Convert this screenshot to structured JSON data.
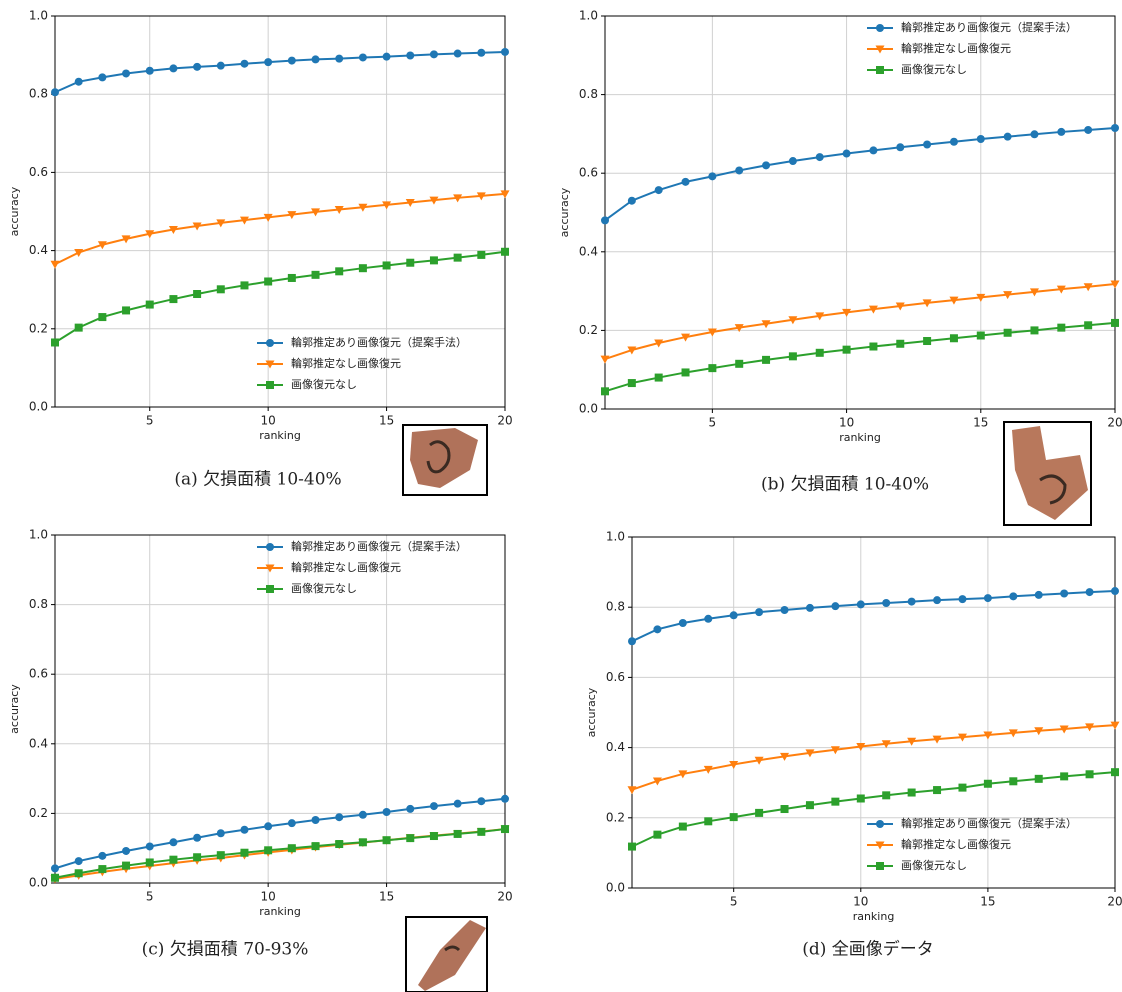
{
  "chart_data": [
    {
      "type": "line",
      "caption": "(a) 欠損面積 10-40%",
      "xlabel": "ranking",
      "ylabel": "accuracy",
      "x": [
        1,
        2,
        3,
        4,
        5,
        6,
        7,
        8,
        9,
        10,
        11,
        12,
        13,
        14,
        15,
        16,
        17,
        18,
        19,
        20
      ],
      "xlim": [
        1,
        20
      ],
      "xticks": [
        5,
        10,
        15,
        20
      ],
      "ylim": [
        0,
        1
      ],
      "yticks": [
        {
          "value": 0,
          "label": "0.0"
        },
        0.2,
        0.4,
        0.6,
        0.8,
        {
          "value": 1,
          "label": "1.0"
        }
      ],
      "grid": true,
      "legend": "lower right",
      "series": [
        {
          "name": "輪郭推定あり画像復元（提案手法）",
          "color": "#1f77b4",
          "marker": "circle",
          "values": [
            0.805,
            0.832,
            0.843,
            0.853,
            0.86,
            0.866,
            0.87,
            0.873,
            0.878,
            0.882,
            0.886,
            0.889,
            0.891,
            0.894,
            0.896,
            0.899,
            0.902,
            0.904,
            0.906,
            0.908
          ]
        },
        {
          "name": "輪郭推定なし画像復元",
          "color": "#ff7f0e",
          "marker": "triangle-down",
          "values": [
            0.365,
            0.395,
            0.415,
            0.43,
            0.443,
            0.454,
            0.463,
            0.471,
            0.478,
            0.485,
            0.492,
            0.499,
            0.505,
            0.511,
            0.517,
            0.523,
            0.529,
            0.535,
            0.54,
            0.545
          ]
        },
        {
          "name": "画像復元なし",
          "color": "#2ca02c",
          "marker": "square",
          "values": [
            0.165,
            0.203,
            0.23,
            0.247,
            0.262,
            0.276,
            0.289,
            0.301,
            0.311,
            0.321,
            0.33,
            0.338,
            0.347,
            0.355,
            0.362,
            0.369,
            0.375,
            0.382,
            0.389,
            0.397
          ]
        }
      ]
    },
    {
      "type": "line",
      "caption": "(b) 欠損面積 10-40%",
      "xlabel": "ranking",
      "ylabel": "accuracy",
      "x": [
        1,
        2,
        3,
        4,
        5,
        6,
        7,
        8,
        9,
        10,
        11,
        12,
        13,
        14,
        15,
        16,
        17,
        18,
        19,
        20
      ],
      "xlim": [
        1,
        20
      ],
      "xticks": [
        5,
        10,
        15,
        20
      ],
      "ylim": [
        0,
        1
      ],
      "yticks": [
        {
          "value": 0,
          "label": "0.0"
        },
        0.2,
        0.4,
        0.6,
        0.8,
        {
          "value": 1,
          "label": "1.0"
        }
      ],
      "grid": true,
      "legend": "upper right",
      "series": [
        {
          "name": "輪郭推定あり画像復元（提案手法）",
          "color": "#1f77b4",
          "marker": "circle",
          "values": [
            0.48,
            0.53,
            0.557,
            0.578,
            0.592,
            0.607,
            0.62,
            0.631,
            0.641,
            0.65,
            0.658,
            0.666,
            0.673,
            0.68,
            0.687,
            0.693,
            0.699,
            0.705,
            0.71,
            0.715
          ]
        },
        {
          "name": "輪郭推定なし画像復元",
          "color": "#ff7f0e",
          "marker": "triangle-down",
          "values": [
            0.127,
            0.15,
            0.168,
            0.183,
            0.196,
            0.207,
            0.217,
            0.227,
            0.237,
            0.246,
            0.254,
            0.262,
            0.27,
            0.277,
            0.284,
            0.291,
            0.298,
            0.305,
            0.311,
            0.318
          ]
        },
        {
          "name": "画像復元なし",
          "color": "#2ca02c",
          "marker": "square",
          "values": [
            0.045,
            0.066,
            0.08,
            0.093,
            0.104,
            0.115,
            0.125,
            0.134,
            0.143,
            0.151,
            0.159,
            0.166,
            0.173,
            0.18,
            0.187,
            0.194,
            0.2,
            0.207,
            0.213,
            0.219
          ]
        }
      ]
    },
    {
      "type": "line",
      "caption": "(c) 欠損面積 70-93%",
      "xlabel": "ranking",
      "ylabel": "accuracy",
      "x": [
        1,
        2,
        3,
        4,
        5,
        6,
        7,
        8,
        9,
        10,
        11,
        12,
        13,
        14,
        15,
        16,
        17,
        18,
        19,
        20
      ],
      "xlim": [
        1,
        20
      ],
      "xticks": [
        5,
        10,
        15,
        20
      ],
      "ylim": [
        0,
        1
      ],
      "yticks": [
        {
          "value": 0,
          "label": "0.0"
        },
        0.2,
        0.4,
        0.6,
        0.8,
        {
          "value": 1,
          "label": "1.0"
        }
      ],
      "grid": true,
      "legend": "upper right",
      "series": [
        {
          "name": "輪郭推定あり画像復元（提案手法）",
          "color": "#1f77b4",
          "marker": "circle",
          "values": [
            0.042,
            0.063,
            0.078,
            0.092,
            0.105,
            0.117,
            0.13,
            0.143,
            0.153,
            0.163,
            0.172,
            0.181,
            0.189,
            0.196,
            0.204,
            0.213,
            0.221,
            0.228,
            0.235,
            0.242
          ]
        },
        {
          "name": "輪郭推定なし画像復元",
          "color": "#ff7f0e",
          "marker": "triangle-down",
          "values": [
            0.012,
            0.022,
            0.032,
            0.041,
            0.049,
            0.057,
            0.065,
            0.072,
            0.08,
            0.088,
            0.095,
            0.103,
            0.11,
            0.116,
            0.123,
            0.13,
            0.136,
            0.142,
            0.148,
            0.155
          ]
        },
        {
          "name": "画像復元なし",
          "color": "#2ca02c",
          "marker": "square",
          "values": [
            0.015,
            0.028,
            0.04,
            0.05,
            0.059,
            0.067,
            0.074,
            0.08,
            0.087,
            0.094,
            0.1,
            0.106,
            0.112,
            0.117,
            0.123,
            0.129,
            0.135,
            0.141,
            0.147,
            0.155
          ]
        }
      ]
    },
    {
      "type": "line",
      "caption": "(d) 全画像データ",
      "xlabel": "ranking",
      "ylabel": "accuracy",
      "x": [
        1,
        2,
        3,
        4,
        5,
        6,
        7,
        8,
        9,
        10,
        11,
        12,
        13,
        14,
        15,
        16,
        17,
        18,
        19,
        20
      ],
      "xlim": [
        1,
        20
      ],
      "xticks": [
        5,
        10,
        15,
        20
      ],
      "ylim": [
        0,
        1
      ],
      "yticks": [
        {
          "value": 0,
          "label": "0.0"
        },
        0.2,
        0.4,
        0.6,
        0.8,
        {
          "value": 1,
          "label": "1.0"
        }
      ],
      "grid": true,
      "legend": "lower right",
      "series": [
        {
          "name": "輪郭推定あり画像復元（提案手法）",
          "color": "#1f77b4",
          "marker": "circle",
          "values": [
            0.703,
            0.737,
            0.755,
            0.767,
            0.777,
            0.786,
            0.792,
            0.798,
            0.803,
            0.808,
            0.812,
            0.816,
            0.82,
            0.823,
            0.826,
            0.831,
            0.835,
            0.839,
            0.843,
            0.846
          ]
        },
        {
          "name": "輪郭推定なし画像復元",
          "color": "#ff7f0e",
          "marker": "triangle-down",
          "values": [
            0.28,
            0.305,
            0.325,
            0.338,
            0.352,
            0.364,
            0.375,
            0.385,
            0.394,
            0.403,
            0.411,
            0.418,
            0.424,
            0.43,
            0.436,
            0.442,
            0.448,
            0.453,
            0.459,
            0.464
          ]
        },
        {
          "name": "画像復元なし",
          "color": "#2ca02c",
          "marker": "square",
          "values": [
            0.118,
            0.152,
            0.175,
            0.19,
            0.202,
            0.214,
            0.225,
            0.236,
            0.246,
            0.255,
            0.264,
            0.272,
            0.279,
            0.286,
            0.297,
            0.304,
            0.311,
            0.318,
            0.324,
            0.33
          ]
        }
      ]
    }
  ]
}
